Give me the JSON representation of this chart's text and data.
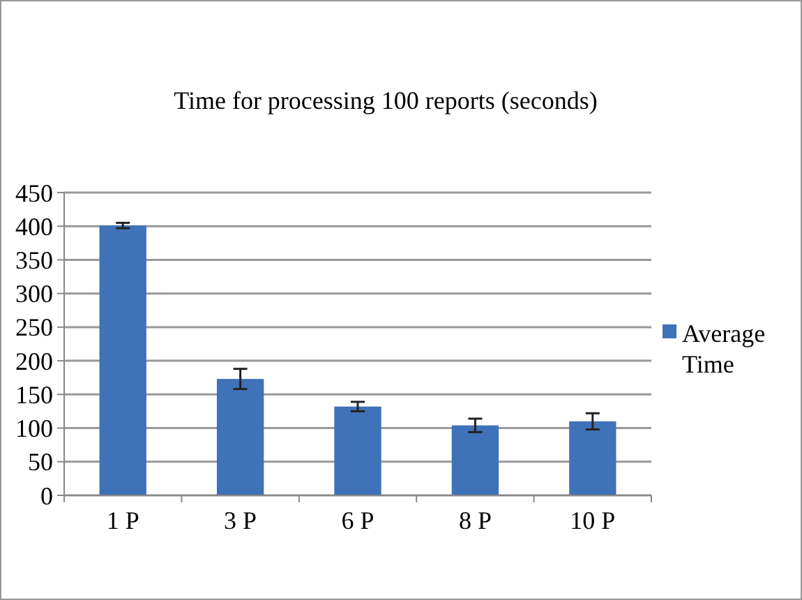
{
  "chart_data": {
    "type": "bar",
    "title": "Time for processing 100 reports (seconds)",
    "categories": [
      "1 P",
      "3 P",
      "6 P",
      "8 P",
      "10 P"
    ],
    "series": [
      {
        "name": "Average Time",
        "color": "#3f72b8",
        "values": [
          401,
          173,
          132,
          104,
          110
        ],
        "errors": [
          4,
          15,
          7,
          10,
          12
        ]
      }
    ],
    "ylim": [
      0,
      450
    ],
    "yticks": [
      0,
      50,
      100,
      150,
      200,
      250,
      300,
      350,
      400,
      450
    ],
    "grid": "y",
    "legend": "right"
  }
}
